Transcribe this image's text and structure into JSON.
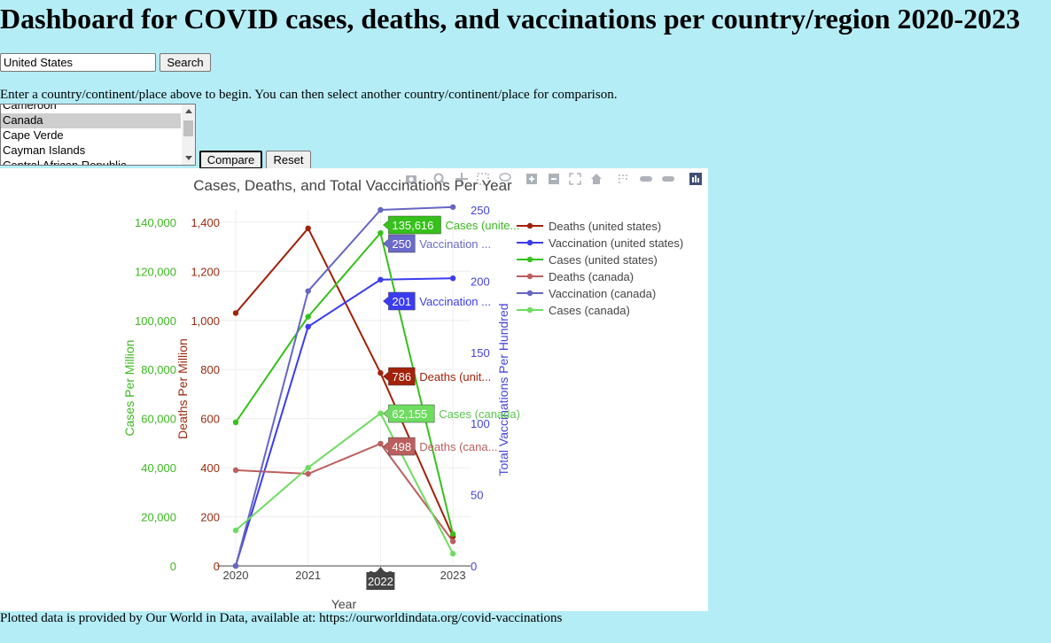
{
  "page": {
    "title": "Dashboard for COVID cases, deaths, and vaccinations per country/region 2020-2023",
    "instructions": "Enter a country/continent/place above to begin. You can then select another country/continent/place for comparison.",
    "footer": "Plotted data is provided by Our World in Data, available at: https://ourworldindata.org/covid-vaccinations"
  },
  "search": {
    "value": "United States",
    "button_label": "Search"
  },
  "country_list": {
    "options": [
      "Cameroon",
      "Canada",
      "Cape Verde",
      "Cayman Islands",
      "Central African Republic"
    ],
    "selected": "Canada"
  },
  "buttons": {
    "compare": "Compare",
    "reset": "Reset"
  },
  "modebar_icons": [
    "camera-icon",
    "zoom-icon",
    "pan-icon",
    "box-select-icon",
    "lasso-icon",
    "zoom-in-icon",
    "zoom-out-icon",
    "autoscale-icon",
    "home-icon",
    "spike-lines-icon",
    "hover-closest-icon",
    "hover-compare-icon",
    "plotly-logo-icon"
  ],
  "chart_data": {
    "type": "line",
    "title": "Cases, Deaths, and Total Vaccinations Per Year",
    "xlabel": "Year",
    "x": [
      "2020",
      "2021",
      "2022",
      "2023"
    ],
    "hovered_x": "2022",
    "axes": {
      "cases": {
        "label": "Cases Per Million",
        "range": [
          0,
          145000
        ],
        "ticks": [
          0,
          20000,
          40000,
          60000,
          80000,
          100000,
          120000,
          140000
        ],
        "tick_labels": [
          "0",
          "20,000",
          "40,000",
          "60,000",
          "80,000",
          "100,000",
          "120,000",
          "140,000"
        ],
        "color": "#3cb81f"
      },
      "deaths": {
        "label": "Deaths Per Million",
        "range": [
          0,
          1450
        ],
        "ticks": [
          0,
          200,
          400,
          600,
          800,
          1000,
          1200,
          1400
        ],
        "tick_labels": [
          "0",
          "200",
          "400",
          "600",
          "800",
          "1,000",
          "1,200",
          "1,400"
        ],
        "color": "#9a2b10"
      },
      "vaccinations": {
        "label": "Total Vaccinations Per Hundred",
        "range": [
          0,
          250
        ],
        "ticks": [
          0,
          50,
          100,
          150,
          200,
          250
        ],
        "tick_labels": [
          "0",
          "50",
          "100",
          "150",
          "200",
          "250"
        ],
        "color": "#4444d8"
      }
    },
    "series": [
      {
        "name": "Deaths (united states)",
        "axis": "deaths",
        "color": "#a3210a",
        "values": [
          1030,
          1375,
          786,
          120
        ]
      },
      {
        "name": "Vaccination (united states)",
        "axis": "vaccinations",
        "color": "#3b3bf0",
        "values": [
          0,
          168,
          201,
          202
        ]
      },
      {
        "name": "Cases (united states)",
        "axis": "cases",
        "color": "#35c11a",
        "values": [
          58500,
          101500,
          135616,
          13000
        ]
      },
      {
        "name": "Deaths (canada)",
        "axis": "deaths",
        "color": "#bd5e5e",
        "values": [
          390,
          375,
          498,
          100
        ]
      },
      {
        "name": "Vaccination (canada)",
        "axis": "vaccinations",
        "color": "#6666c4",
        "values": [
          0,
          193,
          250,
          252
        ]
      },
      {
        "name": "Cases (canada)",
        "axis": "cases",
        "color": "#6ddc5f",
        "values": [
          14500,
          40000,
          62155,
          5000
        ]
      }
    ],
    "hover_labels": [
      {
        "series": "Cases (united states)",
        "value_label": "135,616",
        "name_label": "Cases (unite...",
        "fill": "#35c11a",
        "text": "#3cb81f"
      },
      {
        "series": "Vaccination (canada)",
        "value_label": "250",
        "name_label": "Vaccination ...",
        "fill": "#6a6ac9",
        "text": "#6a6ac9"
      },
      {
        "series": "Vaccination (united states)",
        "value_label": "201",
        "name_label": "Vaccination ...",
        "fill": "#3b3bf0",
        "text": "#3b3bf0"
      },
      {
        "series": "Deaths (united states)",
        "value_label": "786",
        "name_label": "Deaths (unit...",
        "fill": "#a3210a",
        "text": "#a3210a"
      },
      {
        "series": "Cases (canada)",
        "value_label": "62,155",
        "name_label": "Cases (canada)",
        "fill": "#6ddc5f",
        "text": "#5cc450"
      },
      {
        "series": "Deaths (canada)",
        "value_label": "498",
        "name_label": "Deaths (cana...",
        "fill": "#bd5e5e",
        "text": "#bd5e5e"
      }
    ],
    "legend_position": "right",
    "grid": true
  }
}
